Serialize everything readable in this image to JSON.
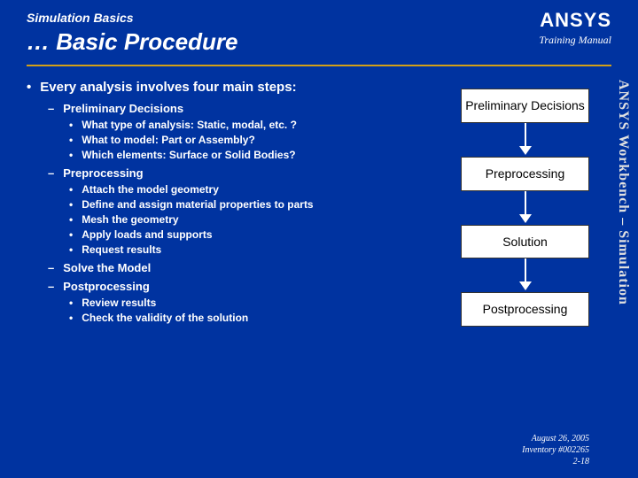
{
  "header": {
    "subtitle": "Simulation Basics",
    "title": "… Basic Procedure",
    "logo": "ANSYS",
    "training": "Training Manual"
  },
  "sideText": "ANSYS Workbench – Simulation",
  "main": {
    "heading": "Every analysis involves four main steps:",
    "sections": [
      {
        "label": "Preliminary Decisions",
        "items": [
          "What type of analysis: Static, modal, etc. ?",
          "What to model: Part or Assembly?",
          "Which elements: Surface or Solid Bodies?"
        ]
      },
      {
        "label": "Preprocessing",
        "items": [
          "Attach the model geometry",
          "Define and assign material properties to parts",
          "Mesh the geometry",
          "Apply loads and supports",
          "Request results"
        ]
      },
      {
        "label": "Solve the Model",
        "items": []
      },
      {
        "label": "Postprocessing",
        "items": [
          "Review results",
          "Check the validity of the solution"
        ]
      }
    ]
  },
  "flow": {
    "boxes": [
      "Preliminary Decisions",
      "Preprocessing",
      "Solution",
      "Postprocessing"
    ],
    "box_bg": "#ffffff",
    "box_border": "#333333",
    "arrow_color": "#ffffff"
  },
  "footer": {
    "line1": "August 26, 2005",
    "line2": "Inventory #002265",
    "line3": "2-18"
  },
  "colors": {
    "page_bg": "#0033a0",
    "accent_line": "#d4a017",
    "text": "#ffffff",
    "side_text": "#e0e0e0"
  }
}
